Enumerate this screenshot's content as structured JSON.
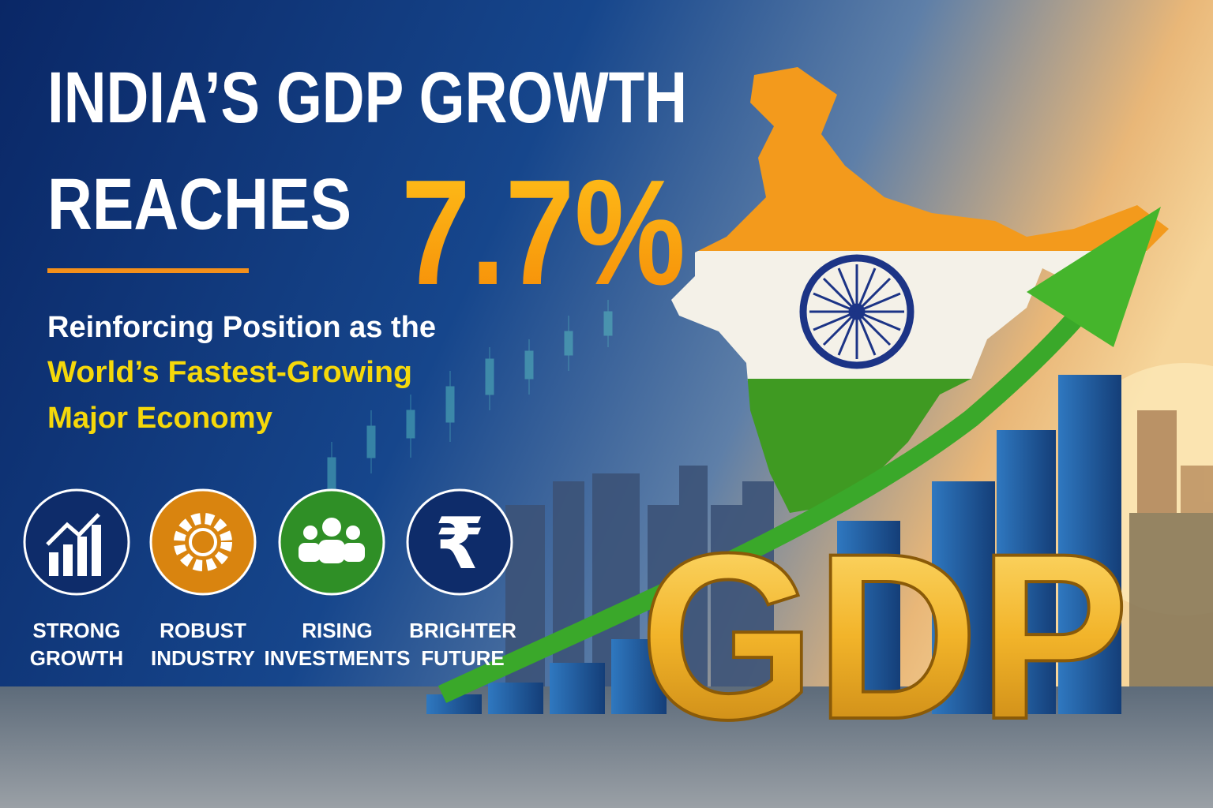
{
  "headline": {
    "line1": "INDIA’S GDP GROWTH",
    "line2": "REACHES",
    "highlight": "7.7%"
  },
  "subheadline": {
    "lines": [
      "Reinforcing Position as the",
      "World’s Fastest-Growing",
      "Major Economy"
    ]
  },
  "features": [
    {
      "label": [
        "STRONG",
        "GROWTH"
      ]
    },
    {
      "label": [
        "ROBUST",
        "INDUSTRY"
      ]
    },
    {
      "label": [
        "RISING",
        "INVESTMENTS"
      ]
    },
    {
      "label": [
        "BRIGHTER",
        "FUTURE"
      ],
      "symbol": "₹"
    }
  ],
  "badge": "GDP"
}
